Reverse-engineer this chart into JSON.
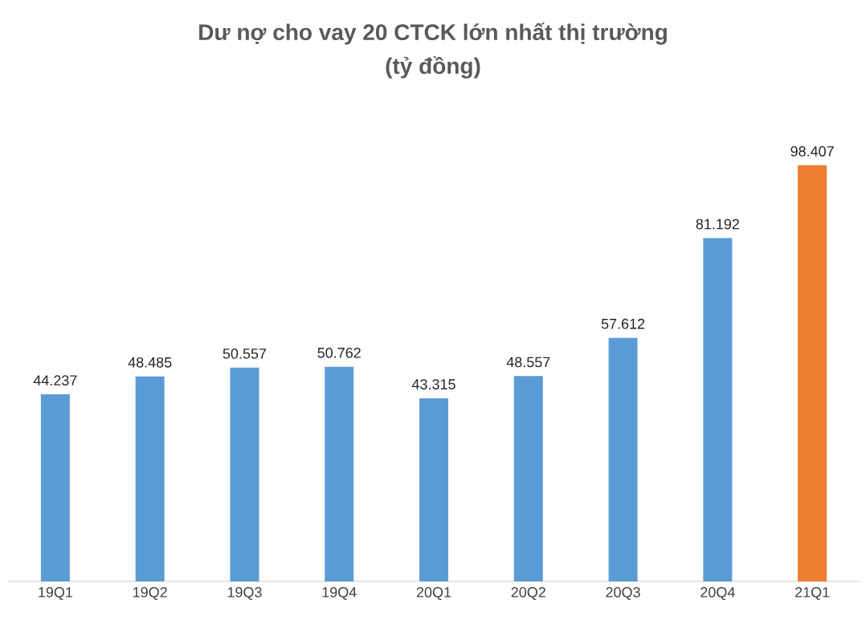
{
  "chart_data": {
    "type": "bar",
    "title": "Dư nợ cho vay 20 CTCK lớn nhất thị trường",
    "subtitle": "(tỷ đồng)",
    "categories": [
      "19Q1",
      "19Q2",
      "19Q3",
      "19Q4",
      "20Q1",
      "20Q2",
      "20Q3",
      "20Q4",
      "21Q1"
    ],
    "values": [
      44237,
      48485,
      50557,
      50762,
      43315,
      48557,
      57612,
      81192,
      98407
    ],
    "value_labels": [
      "44.237",
      "48.485",
      "50.557",
      "50.762",
      "43.315",
      "48.557",
      "57.612",
      "81.192",
      "98.407"
    ],
    "colors": [
      "#5b9bd5",
      "#5b9bd5",
      "#5b9bd5",
      "#5b9bd5",
      "#5b9bd5",
      "#5b9bd5",
      "#5b9bd5",
      "#5b9bd5",
      "#ed7d31"
    ]
  }
}
